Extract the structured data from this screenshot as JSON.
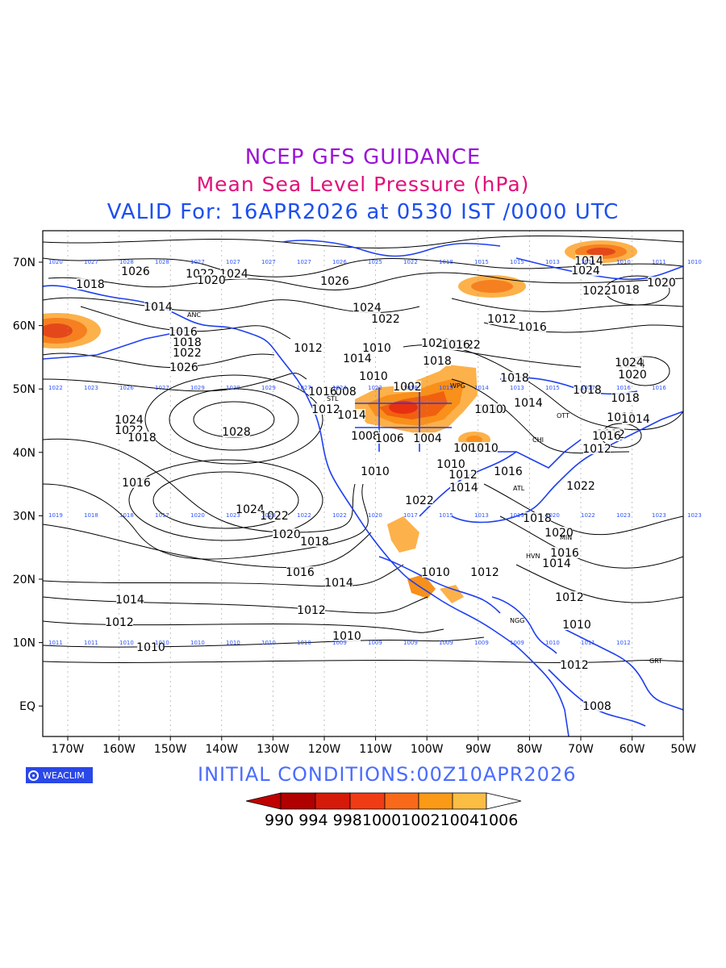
{
  "titles": {
    "line1": "NCEP GFS GUIDANCE",
    "line2": "Mean Sea Level Pressure (hPa)",
    "line3": "VALID For: 16APR2026 at 0530 IST /0000 UTC"
  },
  "axes": {
    "x_ticks": [
      "170W",
      "160W",
      "150W",
      "140W",
      "130W",
      "120W",
      "110W",
      "100W",
      "90W",
      "80W",
      "70W",
      "60W",
      "50W"
    ],
    "y_ticks": [
      "70N",
      "60N",
      "50N",
      "40N",
      "30N",
      "20N",
      "10N",
      "EQ"
    ]
  },
  "contour_labels": [
    {
      "text": "1026"
    },
    {
      "text": "1022"
    },
    {
      "text": "1024"
    },
    {
      "text": "1020"
    },
    {
      "text": "1018"
    },
    {
      "text": "1014"
    },
    {
      "text": "1016"
    },
    {
      "text": "1018"
    },
    {
      "text": "1022"
    },
    {
      "text": "1026"
    },
    {
      "text": "1012"
    },
    {
      "text": "1010"
    },
    {
      "text": "1014"
    },
    {
      "text": "1024"
    },
    {
      "text": "1022"
    },
    {
      "text": "1028"
    },
    {
      "text": "1024"
    },
    {
      "text": "1022"
    },
    {
      "text": "1018"
    },
    {
      "text": "1016"
    },
    {
      "text": "1024"
    },
    {
      "text": "1022"
    },
    {
      "text": "1020"
    },
    {
      "text": "1018"
    },
    {
      "text": "1016"
    },
    {
      "text": "1014"
    },
    {
      "text": "1012"
    },
    {
      "text": "1010"
    },
    {
      "text": "1014"
    },
    {
      "text": "1012"
    },
    {
      "text": "1010"
    },
    {
      "text": "1010"
    },
    {
      "text": "1012"
    },
    {
      "text": "1026"
    },
    {
      "text": "1024"
    },
    {
      "text": "1022"
    },
    {
      "text": "1020"
    },
    {
      "text": "1018"
    },
    {
      "text": "1016"
    },
    {
      "text": "1012"
    },
    {
      "text": "1014"
    },
    {
      "text": "1010"
    },
    {
      "text": "1008"
    },
    {
      "text": "1006"
    },
    {
      "text": "1004"
    },
    {
      "text": "1002"
    },
    {
      "text": "1008"
    },
    {
      "text": "1012"
    },
    {
      "text": "1014"
    },
    {
      "text": "1016"
    },
    {
      "text": "1010"
    },
    {
      "text": "1010"
    },
    {
      "text": "1012"
    },
    {
      "text": "1014"
    },
    {
      "text": "1016"
    },
    {
      "text": "1018"
    },
    {
      "text": "1020"
    },
    {
      "text": "1022"
    },
    {
      "text": "1024"
    },
    {
      "text": "1018"
    },
    {
      "text": "1016"
    },
    {
      "text": "1014"
    },
    {
      "text": "1012"
    },
    {
      "text": "1010"
    },
    {
      "text": "1010"
    },
    {
      "text": "1012"
    },
    {
      "text": "1008"
    },
    {
      "text": "1010"
    },
    {
      "text": "1018"
    },
    {
      "text": "1022"
    },
    {
      "text": "1020"
    },
    {
      "text": "1018"
    },
    {
      "text": "1016"
    },
    {
      "text": "1014"
    },
    {
      "text": "1012"
    },
    {
      "text": "1024"
    },
    {
      "text": "1020"
    },
    {
      "text": "1018"
    },
    {
      "text": "1016"
    },
    {
      "text": "1012"
    },
    {
      "text": "1014"
    },
    {
      "text": "1022"
    },
    {
      "text": "1010"
    },
    {
      "text": "1012"
    },
    {
      "text": "1008"
    }
  ],
  "stations": [
    "ANC",
    "STL",
    "NGG",
    "MIN",
    "HVN",
    "GRT",
    "OTT",
    "CHI",
    "WPG",
    "ATL"
  ],
  "colors": {
    "coast": "#1f3ff0",
    "contour": "#000000",
    "shade": [
      "#b00000",
      "#cc1000",
      "#e83010",
      "#f06010",
      "#f8901a",
      "#fcb23a",
      "#fdd070",
      "#ffffff"
    ]
  },
  "badge": "WEACLIM",
  "initial_conditions": "INITIAL CONDITIONS:00Z10APR2026",
  "colorbar": {
    "labels": [
      "990",
      "994",
      "998",
      "1000",
      "1002",
      "1004",
      "1006"
    ],
    "text": "990 994 9981000100210041006"
  },
  "grid_values": {
    "row_70N": [
      "1020",
      "1027",
      "1028",
      "1028",
      "1027",
      "1027",
      "1027",
      "1027",
      "1026",
      "1025",
      "1022",
      "1018",
      "1015",
      "1015",
      "1013",
      "1011",
      "1010",
      "1011",
      "1010"
    ],
    "row_50N": [
      "1022",
      "1023",
      "1026",
      "1027",
      "1029",
      "1030",
      "1029",
      "1027",
      "1024",
      "1022",
      "1018",
      "1015",
      "1014",
      "1013",
      "1015",
      "1017",
      "1016",
      "1016"
    ],
    "row_30N": [
      "1019",
      "1018",
      "1018",
      "1017",
      "1020",
      "1023",
      "1023",
      "1022",
      "1022",
      "1020",
      "1017",
      "1015",
      "1013",
      "1019",
      "1020",
      "1022",
      "1023",
      "1023",
      "1023"
    ],
    "row_10N": [
      "1011",
      "1011",
      "1010",
      "1010",
      "1010",
      "1010",
      "1010",
      "1010",
      "1009",
      "1009",
      "1009",
      "1009",
      "1009",
      "1009",
      "1010",
      "1011",
      "1012"
    ]
  }
}
